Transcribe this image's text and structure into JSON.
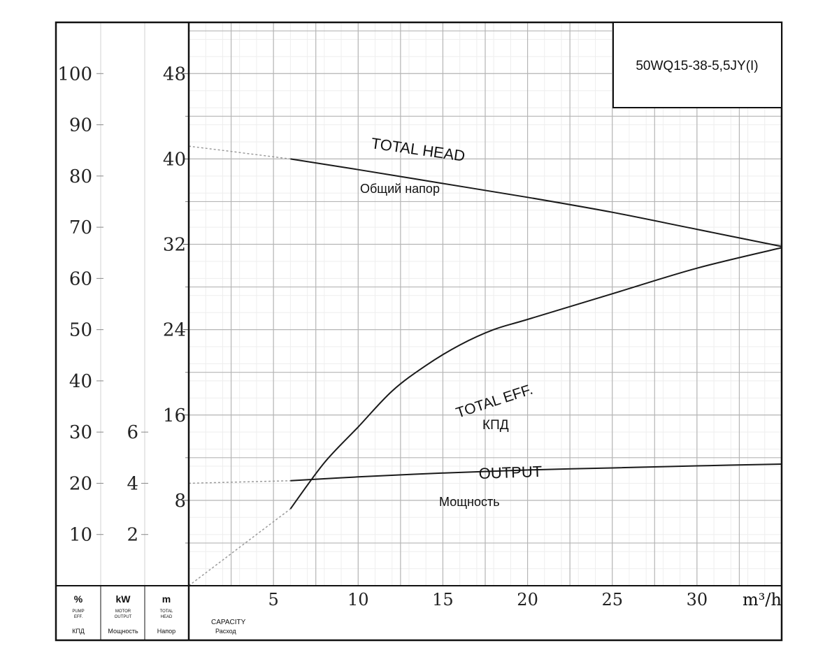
{
  "chart_data": {
    "type": "line",
    "model": "50WQ15-38-5,5JY(I)",
    "xlabel": "CAPACITY",
    "xlabel_ru": "Расход",
    "xunit": "m³/h",
    "xlim": [
      0,
      35
    ],
    "x_ticks": [
      5,
      10,
      15,
      20,
      25,
      30
    ],
    "axes": {
      "percent": {
        "unit": "%",
        "name": "PUMP EFF.",
        "name_ru": "КПД",
        "ticks": [
          10,
          20,
          30,
          40,
          50,
          60,
          70,
          80,
          90,
          100
        ],
        "range": [
          0,
          110
        ]
      },
      "kw": {
        "unit": "kW",
        "name": "MOTOR OUTPUT",
        "name_ru": "Мощность",
        "ticks": [
          2,
          4,
          6
        ],
        "range": [
          0,
          22
        ]
      },
      "m": {
        "unit": "m",
        "name": "TOTAL HEAD",
        "name_ru": "Напор",
        "ticks": [
          8,
          16,
          24,
          32,
          40,
          48
        ],
        "range": [
          0,
          52.8
        ]
      }
    },
    "grid": true,
    "series": [
      {
        "name": "TOTAL HEAD",
        "name_ru": "Общий напор",
        "axis": "m",
        "x": [
          6,
          10,
          15,
          20,
          25,
          30,
          35
        ],
        "y": [
          40,
          39,
          37.7,
          36.4,
          35,
          33.4,
          31.8
        ],
        "extrapolated": {
          "x": [
            0,
            6
          ],
          "y": [
            41.2,
            40
          ]
        }
      },
      {
        "name": "TOTAL EFF.",
        "name_ru": "КПД",
        "axis": "percent",
        "x": [
          6,
          8,
          10,
          12,
          14,
          16,
          18,
          20,
          25,
          30,
          35
        ],
        "y": [
          15,
          24,
          31,
          38,
          43,
          47,
          50,
          52,
          57,
          62,
          66
        ],
        "extrapolated": {
          "x": [
            0,
            6
          ],
          "y": [
            0,
            15
          ]
        }
      },
      {
        "name": "OUTPUT",
        "name_ru": "Мощность",
        "axis": "kw",
        "x": [
          6,
          10,
          15,
          20,
          25,
          30,
          35
        ],
        "y": [
          4.1,
          4.25,
          4.4,
          4.52,
          4.6,
          4.68,
          4.75
        ],
        "extrapolated": {
          "x": [
            0,
            6
          ],
          "y": [
            4.0,
            4.1
          ]
        }
      }
    ]
  },
  "footer": {
    "pct_unit": "%",
    "pct_name_top": "PUMP",
    "pct_name_bottom": "EFF.",
    "pct_ru": "КПД",
    "kw_unit": "kW",
    "kw_name_top": "MOTOR",
    "kw_name_bottom": "OUTPUT",
    "kw_ru": "Мощность",
    "m_unit": "m",
    "m_name_top": "TOTAL",
    "m_name_bottom": "HEAD",
    "m_ru": "Напор",
    "cap_label": "CAPACITY",
    "cap_ru": "Расход"
  },
  "curve_labels": {
    "head_en": "TOTAL HEAD",
    "head_ru": "Общий напор",
    "eff_en": "TOTAL EFF.",
    "eff_ru": "КПД",
    "out_en": "OUTPUT",
    "out_ru": "Мощность",
    "x_unit_text": "m³/h"
  }
}
